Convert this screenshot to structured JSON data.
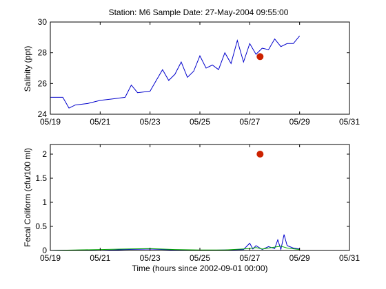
{
  "figure_title": "Station: M6  Sample Date: 27-May-2004 09:55:00",
  "colors": {
    "line_primary": "#0000cc",
    "line_secondary": "#00aa00",
    "sample_marker": "#cc2200",
    "axes": "#000000",
    "background": "#ffffff"
  },
  "chart_data": [
    {
      "type": "line",
      "title": "Station: M6  Sample Date: 27-May-2004 09:55:00",
      "xlabel": "",
      "ylabel": "Salinity (ppt)",
      "xlim": [
        "05/19",
        "05/31"
      ],
      "ylim": [
        24,
        30
      ],
      "x_tick_labels": [
        "05/19",
        "05/21",
        "05/23",
        "05/25",
        "05/27",
        "05/29",
        "05/31"
      ],
      "y_tick_labels": [
        "24",
        "26",
        "28",
        "30"
      ],
      "y_ticks": [
        24,
        26,
        28,
        30
      ],
      "grid": false,
      "series": [
        {
          "color": "#0000cc",
          "x": [
            "05/19 00:00",
            "05/19 12:00",
            "05/19 18:00",
            "05/20 00:00",
            "05/20 12:00",
            "05/21 00:00",
            "05/21 12:00",
            "05/22 00:00",
            "05/22 06:00",
            "05/22 12:00",
            "05/23 00:00",
            "05/23 06:00",
            "05/23 12:00",
            "05/23 18:00",
            "05/24 00:00",
            "05/24 06:00",
            "05/24 12:00",
            "05/24 18:00",
            "05/25 00:00",
            "05/25 06:00",
            "05/25 12:00",
            "05/25 18:00",
            "05/26 00:00",
            "05/26 06:00",
            "05/26 12:00",
            "05/26 18:00",
            "05/27 00:00",
            "05/27 06:00",
            "05/27 12:00",
            "05/27 18:00",
            "05/28 00:00",
            "05/28 06:00",
            "05/28 12:00",
            "05/28 18:00",
            "05/29 00:00"
          ],
          "y": [
            25.1,
            25.1,
            24.4,
            24.6,
            24.7,
            24.9,
            25.0,
            25.1,
            25.9,
            25.4,
            25.5,
            26.2,
            26.9,
            26.2,
            26.6,
            27.4,
            26.4,
            26.8,
            27.8,
            27.0,
            27.2,
            26.9,
            28.0,
            27.3,
            28.8,
            27.4,
            28.6,
            27.9,
            28.3,
            28.2,
            28.9,
            28.4,
            28.6,
            28.6,
            29.1
          ]
        }
      ],
      "sample_points": [
        {
          "x": "05/27 09:55",
          "y": 27.75
        }
      ]
    },
    {
      "type": "line",
      "xlabel": "Time (hours since 2002-09-01 00:00)",
      "ylabel": "Fecal Coliform (cfu/100 ml)",
      "xlim": [
        "05/19",
        "05/31"
      ],
      "ylim": [
        0,
        2.2
      ],
      "x_tick_labels": [
        "05/19",
        "05/21",
        "05/23",
        "05/25",
        "05/27",
        "05/29",
        "05/31"
      ],
      "y_tick_labels": [
        "0",
        "0.5",
        "1",
        "1.5",
        "2"
      ],
      "y_ticks": [
        0,
        0.5,
        1,
        1.5,
        2
      ],
      "grid": false,
      "series": [
        {
          "color": "#0000cc",
          "x": [
            "05/19 00:00",
            "05/20 12:00",
            "05/21 00:00",
            "05/22 00:00",
            "05/23 00:00",
            "05/24 00:00",
            "05/25 00:00",
            "05/26 00:00",
            "05/26 18:00",
            "05/27 00:00",
            "05/27 03:00",
            "05/27 06:00",
            "05/27 12:00",
            "05/27 18:00",
            "05/28 00:00",
            "05/28 03:00",
            "05/28 06:00",
            "05/28 09:00",
            "05/28 12:00",
            "05/28 18:00",
            "05/29 00:00"
          ],
          "y": [
            0.0,
            0.01,
            0.0,
            0.02,
            0.03,
            0.01,
            0.0,
            0.01,
            0.02,
            0.15,
            0.03,
            0.1,
            0.02,
            0.08,
            0.04,
            0.22,
            0.02,
            0.33,
            0.1,
            0.05,
            0.03
          ]
        },
        {
          "color": "#00aa00",
          "x": [
            "05/19 00:00",
            "05/21 00:00",
            "05/22 00:00",
            "05/23 00:00",
            "05/24 00:00",
            "05/25 00:00",
            "05/26 00:00",
            "05/27 00:00",
            "05/27 06:00",
            "05/27 12:00",
            "05/28 00:00",
            "05/28 06:00",
            "05/28 12:00",
            "05/29 00:00"
          ],
          "y": [
            0.0,
            0.02,
            0.03,
            0.04,
            0.02,
            0.01,
            0.01,
            0.04,
            0.06,
            0.03,
            0.07,
            0.09,
            0.05,
            0.02
          ]
        }
      ],
      "sample_points": [
        {
          "x": "05/27 09:55",
          "y": 2.0
        }
      ]
    }
  ]
}
